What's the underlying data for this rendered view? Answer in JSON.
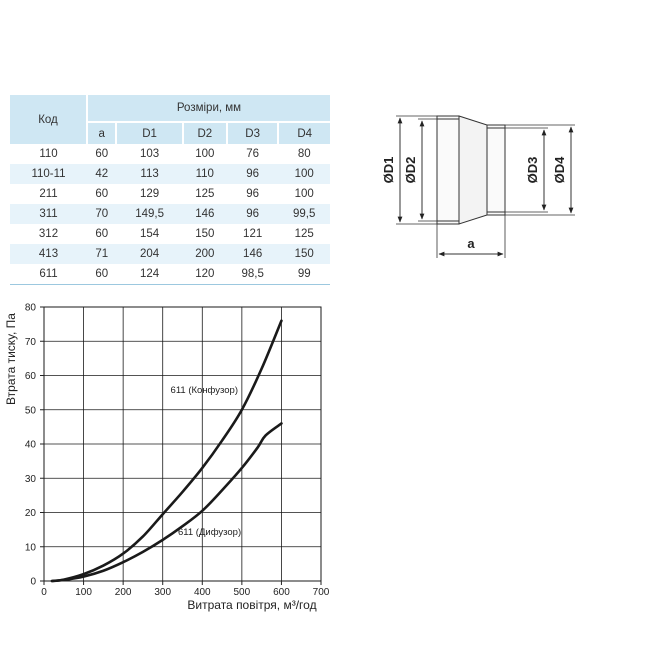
{
  "table": {
    "code_header": "Код",
    "group_header": "Розміри, мм",
    "columns": [
      "a",
      "D1",
      "D2",
      "D3",
      "D4"
    ],
    "rows": [
      {
        "code": "110",
        "values": [
          "60",
          "103",
          "100",
          "76",
          "80"
        ]
      },
      {
        "code": "110-11",
        "values": [
          "42",
          "113",
          "110",
          "96",
          "100"
        ]
      },
      {
        "code": "211",
        "values": [
          "60",
          "129",
          "125",
          "96",
          "100"
        ]
      },
      {
        "code": "311",
        "values": [
          "70",
          "149,5",
          "146",
          "96",
          "99,5"
        ]
      },
      {
        "code": "312",
        "values": [
          "60",
          "154",
          "150",
          "121",
          "125"
        ]
      },
      {
        "code": "413",
        "values": [
          "71",
          "204",
          "200",
          "146",
          "150"
        ]
      },
      {
        "code": "611",
        "values": [
          "60",
          "124",
          "120",
          "98,5",
          "99"
        ]
      }
    ]
  },
  "drawing": {
    "labels": {
      "d1": "D1",
      "d2": "D2",
      "d3": "D3",
      "d4": "D4",
      "a": "a"
    },
    "diameter_symbol": "Ø"
  },
  "chart_data": {
    "type": "line",
    "xlabel": "Витрата повітря, м³/год",
    "ylabel": "Втрата тиску, Па",
    "xlim": [
      0,
      700
    ],
    "ylim": [
      0,
      80
    ],
    "xticks": [
      0,
      100,
      200,
      300,
      400,
      500,
      600,
      700
    ],
    "yticks": [
      0,
      10,
      20,
      30,
      40,
      50,
      60,
      70,
      80
    ],
    "grid": true,
    "series": [
      {
        "name": "611 (Конфузор)",
        "x": [
          20,
          50,
          100,
          150,
          200,
          250,
          300,
          350,
          400,
          450,
          500,
          550,
          600
        ],
        "y": [
          0,
          0.4,
          2,
          4.5,
          8,
          13,
          19.5,
          26,
          33,
          41,
          50,
          62,
          76
        ]
      },
      {
        "name": "611 (Дифузор)",
        "x": [
          20,
          50,
          100,
          150,
          200,
          250,
          300,
          350,
          400,
          450,
          500,
          540,
          560,
          600
        ],
        "y": [
          0,
          0.3,
          1.3,
          3,
          5.5,
          8.5,
          12,
          16,
          20.5,
          26.5,
          33,
          39,
          42.5,
          46
        ]
      }
    ],
    "line_color": "#1a1a1a",
    "grid_color": "#1a1a1a"
  }
}
